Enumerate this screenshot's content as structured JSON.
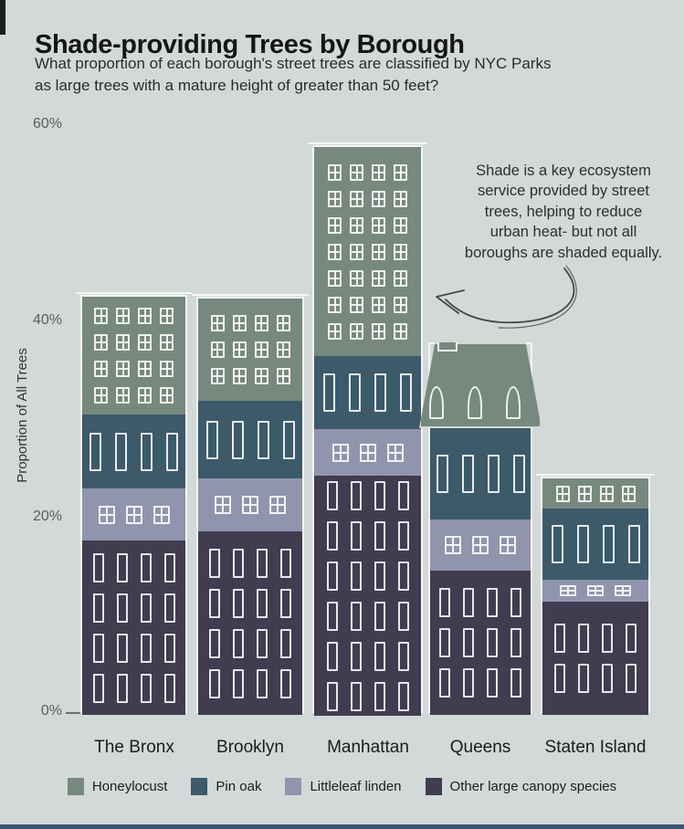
{
  "header": {
    "title": "Shade-providing Trees by Borough",
    "subtitle_line1": "What proportion of each  borough's street trees are classified by NYC Parks",
    "subtitle_line2": "as large trees with a mature height of greater than 50 feet?"
  },
  "chart_data": {
    "type": "bar",
    "stacked": true,
    "title": "Shade-providing Trees by Borough",
    "categories": [
      "The Bronx",
      "Brooklyn",
      "Manhattan",
      "Queens",
      "Staten Island"
    ],
    "series": [
      {
        "name": "Honeylocust",
        "color": "#77897f",
        "values": [
          12.0,
          10.4,
          21.3,
          8.6,
          3.1
        ]
      },
      {
        "name": "Pin oak",
        "color": "#3c5a6a",
        "values": [
          7.5,
          7.9,
          7.4,
          9.3,
          7.3
        ]
      },
      {
        "name": "Littleleaf linden",
        "color": "#9094ad",
        "values": [
          5.3,
          5.4,
          4.7,
          5.2,
          2.2
        ]
      },
      {
        "name": "Other large canopy species",
        "color": "#413c4f",
        "values": [
          17.8,
          18.7,
          24.5,
          14.7,
          11.5
        ]
      }
    ],
    "totals": [
      42.6,
      42.4,
      57.9,
      37.8,
      24.1
    ],
    "xlabel": "",
    "ylabel": "Proportion of All Trees",
    "yticks": [
      "60%",
      "40%",
      "20%",
      "0%"
    ],
    "ylim": [
      0,
      60
    ],
    "grid": false,
    "legend_position": "bottom"
  },
  "annotation": {
    "lines": [
      "Shade is a key ecosystem",
      "service provided by street",
      "trees, helping to reduce",
      "urban heat- but not all",
      "boroughs are shaded equally."
    ]
  },
  "colors": {
    "background": "#d3d8d9",
    "bottom_bar": "#3e5671",
    "honeylocust": "#77897f",
    "pin_oak": "#3c5a6a",
    "littleleaf_linden": "#9094ad",
    "other_large_canopy": "#413c4f"
  }
}
